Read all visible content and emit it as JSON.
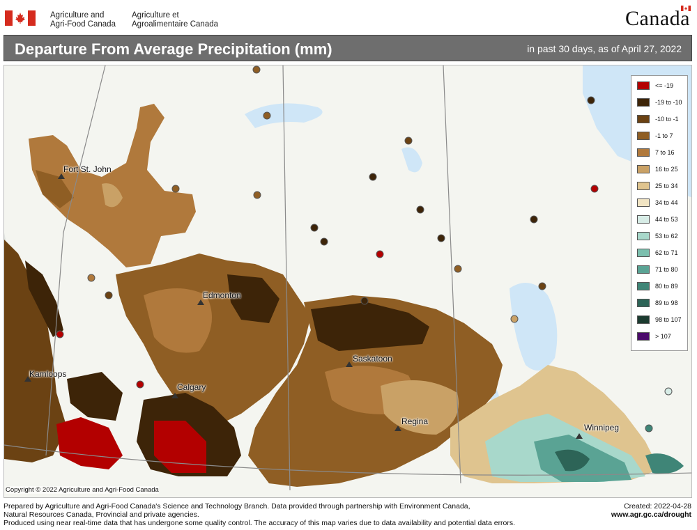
{
  "header": {
    "agency_en_line1": "Agriculture and",
    "agency_en_line2": "Agri-Food Canada",
    "agency_fr_line1": "Agriculture et",
    "agency_fr_line2": "Agroalimentaire Canada",
    "wordmark": "Canada"
  },
  "title": "Departure From Average Precipitation (mm)",
  "subtitle": "in past 30 days, as of April 27, 2022",
  "cities": [
    {
      "name": "Fort St. John"
    },
    {
      "name": "Edmonton"
    },
    {
      "name": "Kamloops"
    },
    {
      "name": "Saskatoon"
    },
    {
      "name": "Calgary"
    },
    {
      "name": "Regina"
    },
    {
      "name": "Winnipeg"
    }
  ],
  "legend": [
    {
      "label": "<= -19",
      "color": "#b30000"
    },
    {
      "label": "-19 to -10",
      "color": "#3d2408"
    },
    {
      "label": "-10 to -1",
      "color": "#6b4213"
    },
    {
      "label": "-1 to 7",
      "color": "#8f5e24"
    },
    {
      "label": "7 to 16",
      "color": "#b0793c"
    },
    {
      "label": "16 to 25",
      "color": "#c9a166"
    },
    {
      "label": "25 to 34",
      "color": "#dfc48f"
    },
    {
      "label": "34 to 44",
      "color": "#f1e4c3"
    },
    {
      "label": "44 to 53",
      "color": "#d7ece6"
    },
    {
      "label": "53 to 62",
      "color": "#a8d8cb"
    },
    {
      "label": "62 to 71",
      "color": "#7cbfae"
    },
    {
      "label": "71 to 80",
      "color": "#5aa394"
    },
    {
      "label": "80 to 89",
      "color": "#3f8577"
    },
    {
      "label": "89 to 98",
      "color": "#2d6457"
    },
    {
      "label": "98 to 107",
      "color": "#1c3b30"
    },
    {
      "label": "> 107",
      "color": "#4b0a6b"
    }
  ],
  "copyright": "Copyright © 2022 Agriculture and Agri-Food Canada",
  "footer": {
    "line1": "Prepared by Agriculture and Agri-Food Canada's Science and Technology Branch. Data provided through partnership with Environment Canada,",
    "line2": "Natural Resources Canada, Provincial and private agencies.",
    "line3": "Produced using near real-time data that has undergone some quality control. The accuracy of this map varies due to data availability and potential data errors.",
    "created": "Created: 2022-04-28",
    "url": "www.agr.gc.ca/drought"
  },
  "colors": {
    "title_bar": "#6e6e6e",
    "water": "#cfe6f7",
    "land": "#f4f5f0"
  }
}
